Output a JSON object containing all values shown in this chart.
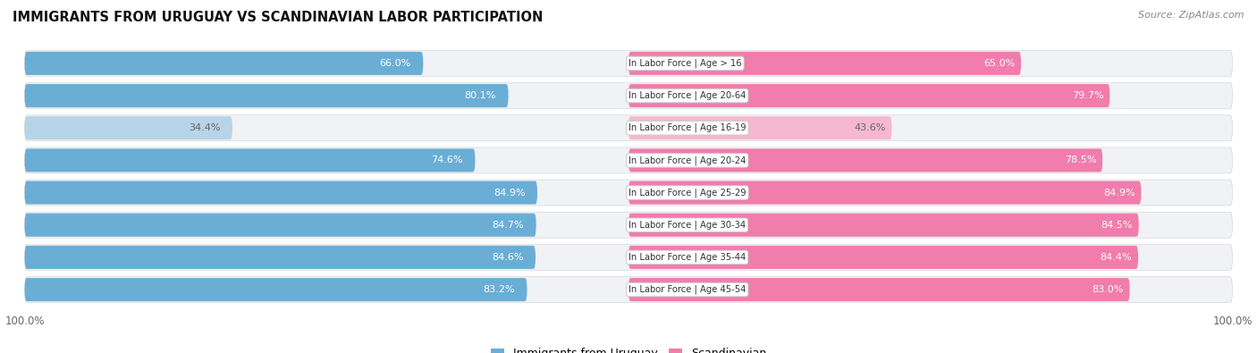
{
  "title": "IMMIGRANTS FROM URUGUAY VS SCANDINAVIAN LABOR PARTICIPATION",
  "source": "Source: ZipAtlas.com",
  "categories": [
    "In Labor Force | Age > 16",
    "In Labor Force | Age 20-64",
    "In Labor Force | Age 16-19",
    "In Labor Force | Age 20-24",
    "In Labor Force | Age 25-29",
    "In Labor Force | Age 30-34",
    "In Labor Force | Age 35-44",
    "In Labor Force | Age 45-54"
  ],
  "uruguay_values": [
    66.0,
    80.1,
    34.4,
    74.6,
    84.9,
    84.7,
    84.6,
    83.2
  ],
  "scandinavian_values": [
    65.0,
    79.7,
    43.6,
    78.5,
    84.9,
    84.5,
    84.4,
    83.0
  ],
  "uruguay_color": "#6aaed6",
  "uruguay_color_light": "#b8d4e8",
  "scandinavian_color": "#f07dab",
  "scandinavian_color_light": "#f5b8d0",
  "legend_labels": [
    "Immigrants from Uruguay",
    "Scandinavian"
  ],
  "row_bg_even": "#f0f0f0",
  "row_bg_odd": "#e8e8e8",
  "xlim": 100.0,
  "bar_height": 0.72
}
